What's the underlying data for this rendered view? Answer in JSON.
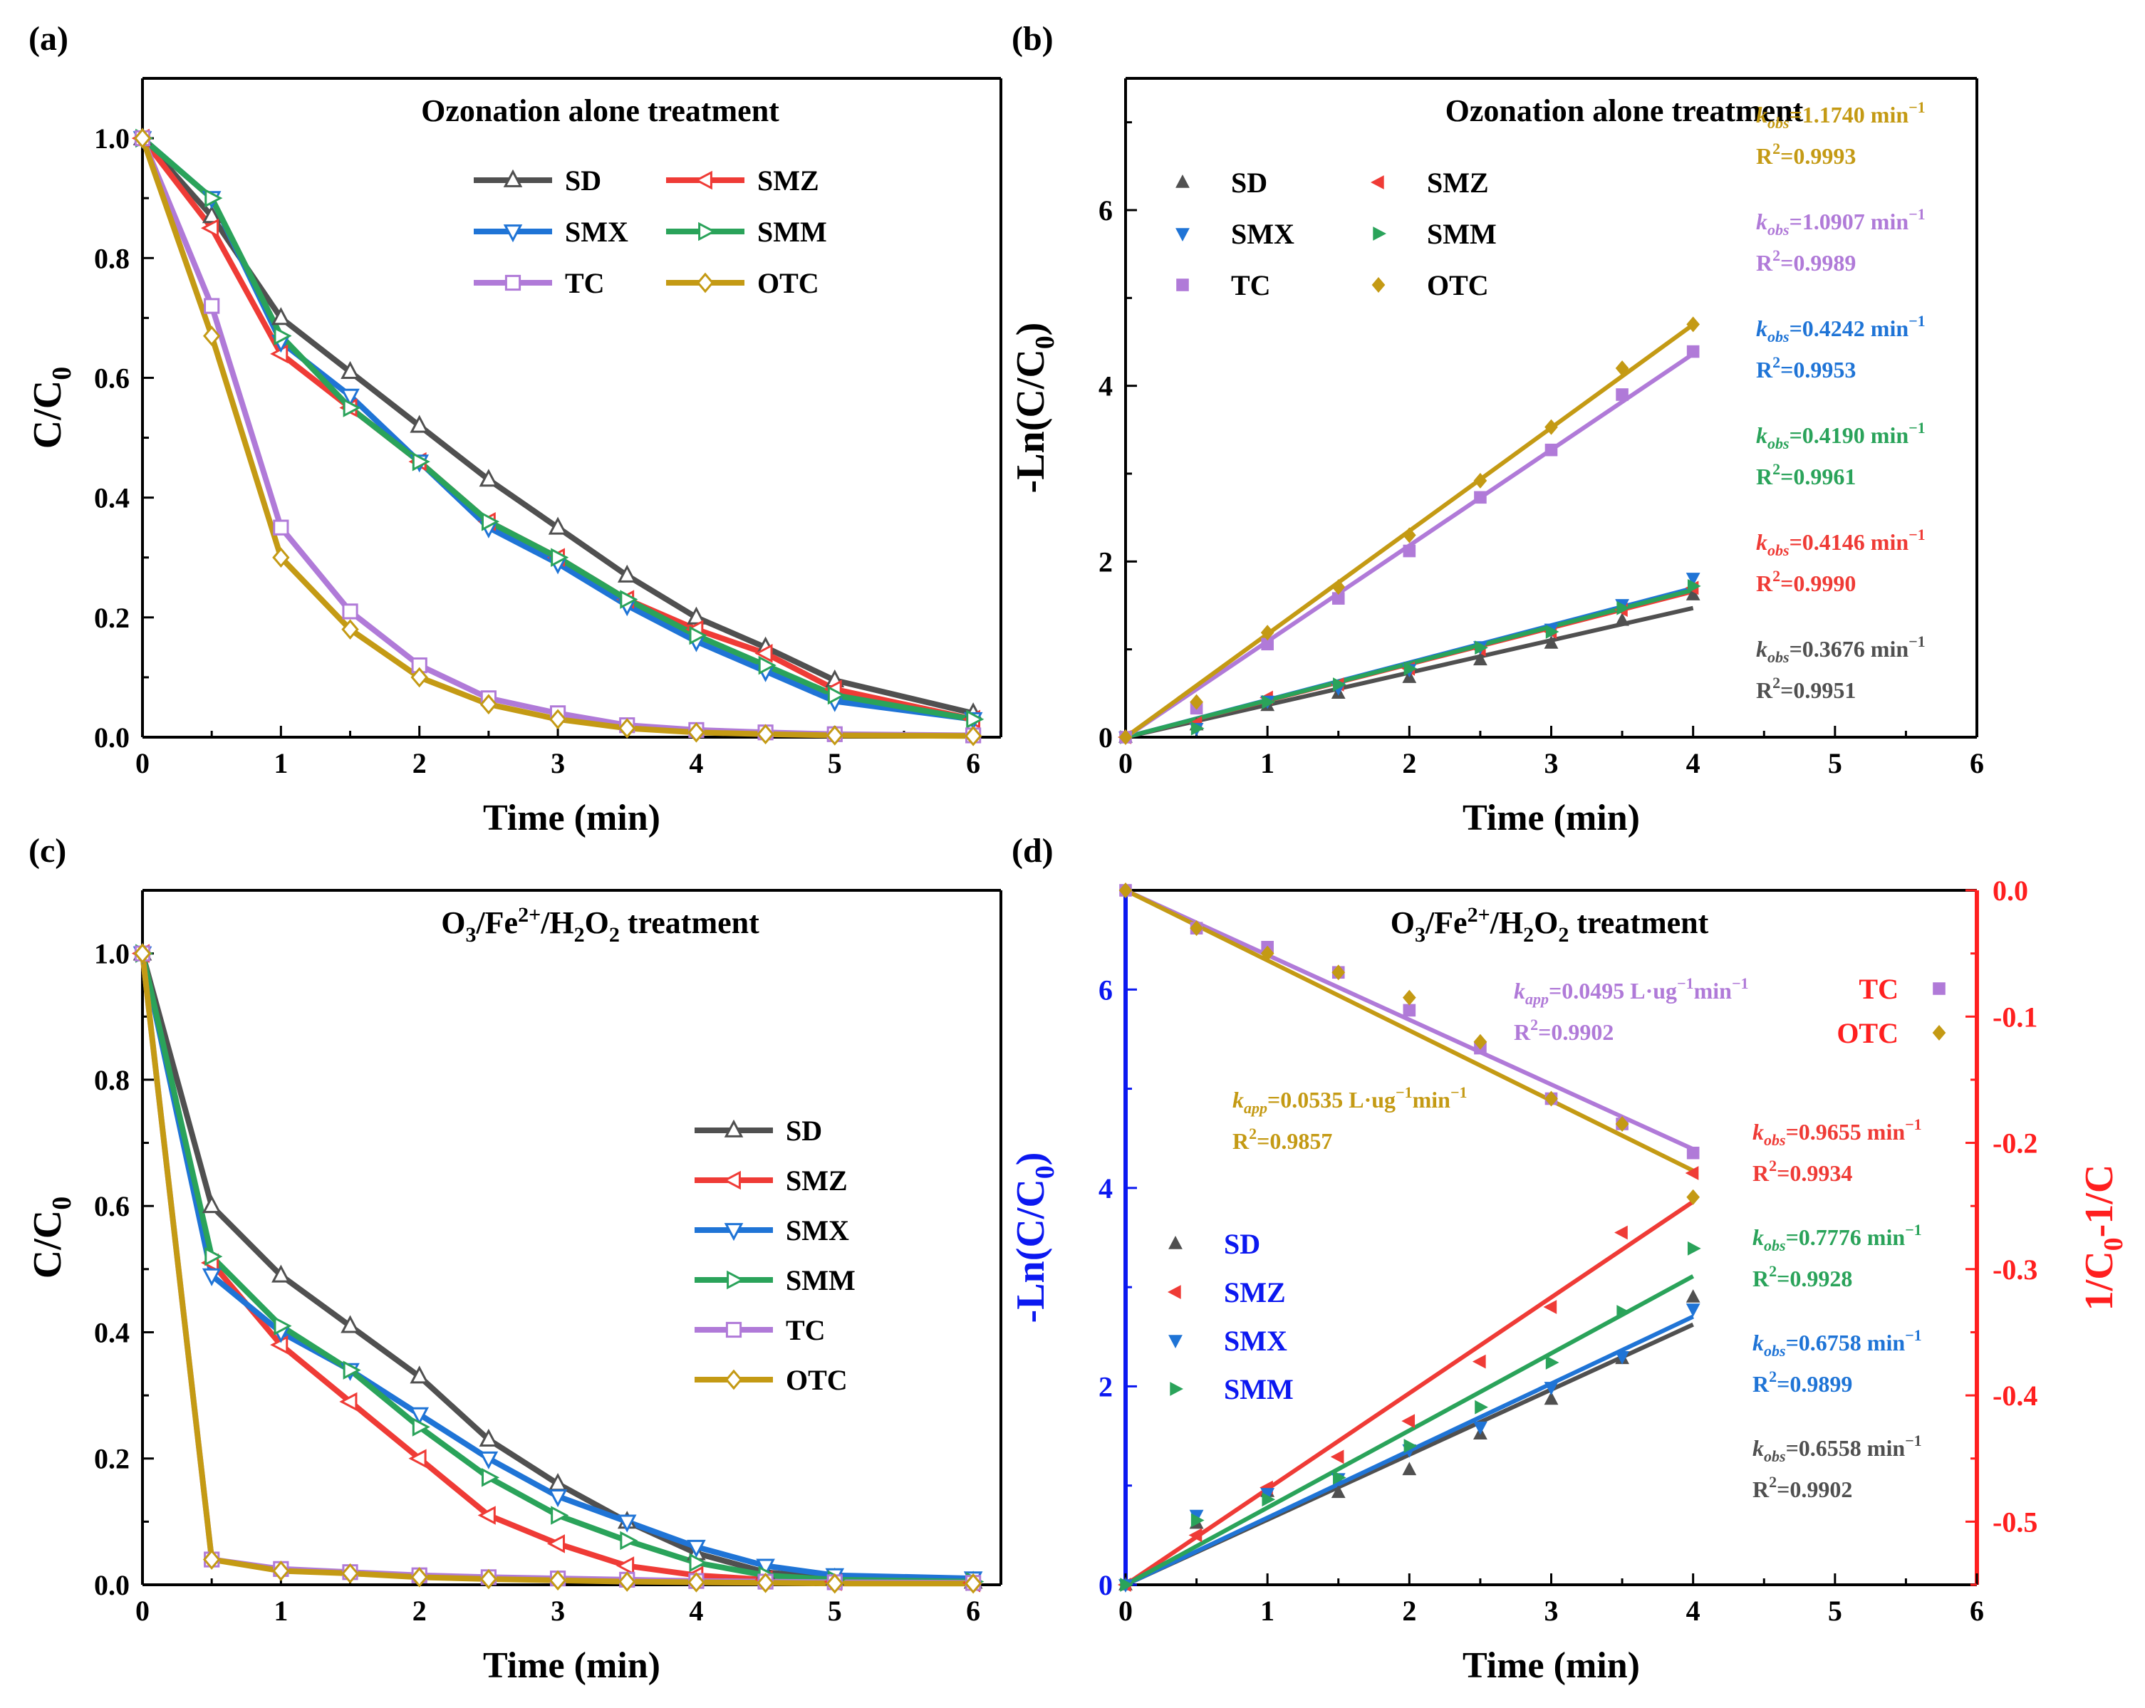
{
  "colors": {
    "SD": "#505050",
    "SMZ": "#ef3b36",
    "SMX": "#1f74d6",
    "SMM": "#2aa35a",
    "TC": "#b07ad8",
    "OTC": "#c49a14",
    "axis": "#000000",
    "left_axis_d": "#0b18f0",
    "right_axis_d": "#ff1f1f"
  },
  "chart_data": [
    {
      "id": "a",
      "type": "line",
      "panel_label": "(a)",
      "title": "Ozonation alone treatment",
      "xlabel": "Time (min)",
      "ylabel": "C/C",
      "ylabel_sub": "0",
      "xlim": [
        0,
        6.2
      ],
      "ylim": [
        0,
        1.1
      ],
      "xticks": [
        "0",
        "1",
        "2",
        "3",
        "4",
        "5",
        "6"
      ],
      "yticks": [
        "0.0",
        "0.2",
        "0.4",
        "0.6",
        "0.8",
        "1.0"
      ],
      "legend_position": "top-center",
      "series": [
        {
          "name": "SD",
          "marker": "triangle-up",
          "x": [
            0,
            0.5,
            1,
            1.5,
            2,
            2.5,
            3,
            3.5,
            4,
            4.5,
            5,
            6
          ],
          "y": [
            1.0,
            0.87,
            0.7,
            0.61,
            0.52,
            0.43,
            0.35,
            0.27,
            0.2,
            0.15,
            0.095,
            0.04
          ]
        },
        {
          "name": "SMZ",
          "marker": "triangle-left",
          "x": [
            0,
            0.5,
            1,
            1.5,
            2,
            2.5,
            3,
            3.5,
            4,
            4.5,
            5,
            6
          ],
          "y": [
            1.0,
            0.85,
            0.64,
            0.55,
            0.46,
            0.36,
            0.3,
            0.23,
            0.18,
            0.14,
            0.08,
            0.03
          ]
        },
        {
          "name": "SMX",
          "marker": "triangle-down",
          "x": [
            0,
            0.5,
            1,
            1.5,
            2,
            2.5,
            3,
            3.5,
            4,
            4.5,
            5,
            6
          ],
          "y": [
            1.0,
            0.9,
            0.66,
            0.57,
            0.46,
            0.35,
            0.29,
            0.22,
            0.16,
            0.11,
            0.06,
            0.03
          ]
        },
        {
          "name": "SMM",
          "marker": "triangle-right",
          "x": [
            0,
            0.5,
            1,
            1.5,
            2,
            2.5,
            3,
            3.5,
            4,
            4.5,
            5,
            6
          ],
          "y": [
            1.0,
            0.9,
            0.67,
            0.55,
            0.46,
            0.36,
            0.3,
            0.23,
            0.17,
            0.12,
            0.07,
            0.03
          ]
        },
        {
          "name": "TC",
          "marker": "square",
          "x": [
            0,
            0.5,
            1,
            1.5,
            2,
            2.5,
            3,
            3.5,
            4,
            4.5,
            5,
            6
          ],
          "y": [
            1.0,
            0.72,
            0.35,
            0.21,
            0.12,
            0.065,
            0.04,
            0.02,
            0.012,
            0.008,
            0.005,
            0.003
          ]
        },
        {
          "name": "OTC",
          "marker": "diamond",
          "x": [
            0,
            0.5,
            1,
            1.5,
            2,
            2.5,
            3,
            3.5,
            4,
            4.5,
            5,
            6
          ],
          "y": [
            1.0,
            0.67,
            0.3,
            0.18,
            0.1,
            0.055,
            0.03,
            0.015,
            0.008,
            0.005,
            0.003,
            0.002
          ]
        }
      ]
    },
    {
      "id": "b",
      "type": "scatter",
      "panel_label": "(b)",
      "title": "Ozonation alone treatment",
      "xlabel": "Time (min)",
      "ylabel": "-Ln(C/C",
      "ylabel_sub": "0",
      "ylabel_tail": ")",
      "xlim": [
        0,
        6
      ],
      "ylim": [
        0,
        7.5
      ],
      "xticks": [
        "0",
        "1",
        "2",
        "3",
        "4",
        "5",
        "6"
      ],
      "yticks": [
        "0",
        "2",
        "4",
        "6"
      ],
      "legend_position": "top-left",
      "series": [
        {
          "name": "SD",
          "marker": "triangle-up",
          "x": [
            0,
            0.5,
            1,
            1.5,
            2,
            2.5,
            3,
            3.5,
            4
          ],
          "y": [
            0,
            0.14,
            0.36,
            0.5,
            0.68,
            0.88,
            1.07,
            1.33,
            1.62
          ],
          "k": 0.3676,
          "k_label": "=0.3676 min",
          "r2_label": "=0.9951"
        },
        {
          "name": "SMZ",
          "marker": "triangle-left",
          "x": [
            0,
            0.5,
            1,
            1.5,
            2,
            2.5,
            3,
            3.5,
            4
          ],
          "y": [
            0,
            0.16,
            0.45,
            0.6,
            0.78,
            1.0,
            1.2,
            1.45,
            1.7
          ],
          "k": 0.4146,
          "k_label": "=0.4146 min",
          "r2_label": "=0.9990"
        },
        {
          "name": "SMX",
          "marker": "triangle-down",
          "x": [
            0,
            0.5,
            1,
            1.5,
            2,
            2.5,
            3,
            3.5,
            4
          ],
          "y": [
            0,
            0.1,
            0.41,
            0.56,
            0.77,
            1.03,
            1.23,
            1.51,
            1.81
          ],
          "k": 0.4242,
          "k_label": "=0.4242 min",
          "r2_label": "=0.9953"
        },
        {
          "name": "SMM",
          "marker": "triangle-right",
          "x": [
            0,
            0.5,
            1,
            1.5,
            2,
            2.5,
            3,
            3.5,
            4
          ],
          "y": [
            0,
            0.1,
            0.4,
            0.6,
            0.78,
            1.02,
            1.2,
            1.47,
            1.72
          ],
          "k": 0.419,
          "k_label": "=0.4190 min",
          "r2_label": "=0.9961"
        },
        {
          "name": "TC",
          "marker": "square",
          "x": [
            0,
            0.5,
            1,
            1.5,
            2,
            2.5,
            3,
            3.5,
            4
          ],
          "y": [
            0,
            0.33,
            1.06,
            1.58,
            2.12,
            2.73,
            3.27,
            3.9,
            4.39
          ],
          "k": 1.0907,
          "k_label": "=1.0907 min",
          "r2_label": "=0.9989"
        },
        {
          "name": "OTC",
          "marker": "diamond",
          "x": [
            0,
            0.5,
            1,
            1.5,
            2,
            2.5,
            3,
            3.5,
            4
          ],
          "y": [
            0,
            0.4,
            1.19,
            1.71,
            2.3,
            2.92,
            3.53,
            4.2,
            4.7
          ],
          "k": 1.174,
          "k_label": "=1.1740 min",
          "r2_label": "=0.9993"
        }
      ],
      "annotation_order": [
        "OTC",
        "TC",
        "SMX",
        "SMM",
        "SMZ",
        "SD"
      ],
      "k_prefix": "k",
      "k_subscript": "obs",
      "k_unit_sup": "−1",
      "r2_prefix": "R",
      "r2_sup": "2"
    },
    {
      "id": "c",
      "type": "line",
      "panel_label": "(c)",
      "title_parts": [
        "O",
        "3",
        "/Fe",
        "2+",
        "/H",
        "2",
        "O",
        "2",
        " treatment"
      ],
      "xlabel": "Time (min)",
      "ylabel": "C/C",
      "ylabel_sub": "0",
      "xlim": [
        0,
        6.2
      ],
      "ylim": [
        0,
        1.1
      ],
      "xticks": [
        "0",
        "1",
        "2",
        "3",
        "4",
        "5",
        "6"
      ],
      "yticks": [
        "0.0",
        "0.2",
        "0.4",
        "0.6",
        "0.8",
        "1.0"
      ],
      "legend_position": "center-right",
      "series": [
        {
          "name": "SD",
          "marker": "triangle-up",
          "x": [
            0,
            0.5,
            1,
            1.5,
            2,
            2.5,
            3,
            3.5,
            4,
            4.5,
            5,
            6
          ],
          "y": [
            1.0,
            0.6,
            0.49,
            0.41,
            0.33,
            0.23,
            0.16,
            0.1,
            0.05,
            0.02,
            0.01,
            0.005
          ]
        },
        {
          "name": "SMZ",
          "marker": "triangle-left",
          "x": [
            0,
            0.5,
            1,
            1.5,
            2,
            2.5,
            3,
            3.5,
            4,
            4.5,
            5,
            6
          ],
          "y": [
            1.0,
            0.51,
            0.38,
            0.29,
            0.2,
            0.11,
            0.065,
            0.03,
            0.015,
            0.008,
            0.005,
            0.003
          ]
        },
        {
          "name": "SMX",
          "marker": "triangle-down",
          "x": [
            0,
            0.5,
            1,
            1.5,
            2,
            2.5,
            3,
            3.5,
            4,
            4.5,
            5,
            6
          ],
          "y": [
            1.0,
            0.49,
            0.4,
            0.34,
            0.27,
            0.2,
            0.14,
            0.1,
            0.06,
            0.03,
            0.015,
            0.01
          ]
        },
        {
          "name": "SMM",
          "marker": "triangle-right",
          "x": [
            0,
            0.5,
            1,
            1.5,
            2,
            2.5,
            3,
            3.5,
            4,
            4.5,
            5,
            6
          ],
          "y": [
            1.0,
            0.52,
            0.41,
            0.34,
            0.25,
            0.17,
            0.11,
            0.07,
            0.035,
            0.015,
            0.008,
            0.005
          ]
        },
        {
          "name": "TC",
          "marker": "square",
          "x": [
            0,
            0.5,
            1,
            1.5,
            2,
            2.5,
            3,
            3.5,
            4,
            4.5,
            5,
            6
          ],
          "y": [
            1.0,
            0.04,
            0.025,
            0.02,
            0.015,
            0.012,
            0.01,
            0.008,
            0.006,
            0.005,
            0.004,
            0.003
          ]
        },
        {
          "name": "OTC",
          "marker": "diamond",
          "x": [
            0,
            0.5,
            1,
            1.5,
            2,
            2.5,
            3,
            3.5,
            4,
            4.5,
            5,
            6
          ],
          "y": [
            1.0,
            0.04,
            0.022,
            0.018,
            0.012,
            0.009,
            0.007,
            0.005,
            0.004,
            0.003,
            0.002,
            0.002
          ]
        }
      ]
    },
    {
      "id": "d",
      "type": "scatter",
      "panel_label": "(d)",
      "title_parts": [
        "O",
        "3",
        "/Fe",
        "2+",
        "/H",
        "2",
        "O",
        "2",
        " treatment"
      ],
      "xlabel": "Time (min)",
      "ylabel": "-Ln(C/C",
      "ylabel_sub": "0",
      "ylabel_tail": ")",
      "ylabel_right_parts": [
        "1/C",
        "0",
        "-1/C"
      ],
      "xlim": [
        0,
        6
      ],
      "ylim": [
        0,
        7
      ],
      "ylim_right": [
        -0.55,
        0
      ],
      "xticks": [
        "0",
        "1",
        "2",
        "3",
        "4",
        "5",
        "6"
      ],
      "yticks": [
        "0",
        "2",
        "4",
        "6"
      ],
      "yticks_right": [
        "0.0",
        "-0.1",
        "-0.2",
        "-0.3",
        "-0.4",
        "-0.5"
      ],
      "legend_left_position": "bottom-left",
      "legend_right_position": "top-right",
      "series_left": [
        {
          "name": "SD",
          "marker": "triangle-up",
          "x": [
            0,
            0.5,
            1,
            1.5,
            2,
            2.5,
            3,
            3.5,
            4
          ],
          "y": [
            0,
            0.62,
            0.94,
            0.93,
            1.16,
            1.52,
            1.87,
            2.28,
            2.9
          ],
          "k": 0.6558,
          "k_label": "=0.6558 min",
          "r2_label": "=0.9902"
        },
        {
          "name": "SMZ",
          "marker": "triangle-left",
          "x": [
            0,
            0.5,
            1,
            1.5,
            2,
            2.5,
            3,
            3.5,
            4
          ],
          "y": [
            0,
            0.5,
            0.98,
            1.29,
            1.65,
            2.25,
            2.8,
            3.55,
            4.15
          ],
          "k": 0.9655,
          "k_label": "=0.9655 min",
          "r2_label": "=0.9934"
        },
        {
          "name": "SMX",
          "marker": "triangle-down",
          "x": [
            0,
            0.5,
            1,
            1.5,
            2,
            2.5,
            3,
            3.5,
            4
          ],
          "y": [
            0,
            0.7,
            0.92,
            1.07,
            1.36,
            1.59,
            1.99,
            2.3,
            2.78
          ],
          "k": 0.6758,
          "k_label": "=0.6758 min",
          "r2_label": "=0.9899"
        },
        {
          "name": "SMM",
          "marker": "triangle-right",
          "x": [
            0,
            0.5,
            1,
            1.5,
            2,
            2.5,
            3,
            3.5,
            4
          ],
          "y": [
            0,
            0.65,
            0.86,
            1.08,
            1.4,
            1.79,
            2.24,
            2.75,
            3.39
          ],
          "k": 0.7776,
          "k_label": "=0.7776 min",
          "r2_label": "=0.9928"
        }
      ],
      "series_right": [
        {
          "name": "TC",
          "marker": "square",
          "x": [
            0,
            0.5,
            1,
            1.5,
            2,
            2.5,
            3,
            3.5,
            4
          ],
          "y": [
            0,
            -0.03,
            -0.045,
            -0.065,
            -0.095,
            -0.125,
            -0.165,
            -0.185,
            -0.208
          ],
          "fit_end": -0.205,
          "k_label": "=0.0495 L·ug",
          "r2_label": "=0.9902"
        },
        {
          "name": "OTC",
          "marker": "diamond",
          "x": [
            0,
            0.5,
            1,
            1.5,
            2,
            2.5,
            3,
            3.5,
            4
          ],
          "y": [
            0,
            -0.03,
            -0.05,
            -0.065,
            -0.085,
            -0.12,
            -0.165,
            -0.185,
            -0.243
          ],
          "fit_end": -0.222,
          "k_label": "=0.0535 L·ug",
          "r2_label": "=0.9857"
        }
      ],
      "k_prefix": "k",
      "k_obs_subscript": "obs",
      "k_app_subscript": "app",
      "k_unit_sup": "−1",
      "k_app_unit_sup1": "−1",
      "k_app_unit_mid": "min",
      "k_app_unit_sup2": "−1",
      "r2_prefix": "R",
      "r2_sup": "2"
    }
  ]
}
